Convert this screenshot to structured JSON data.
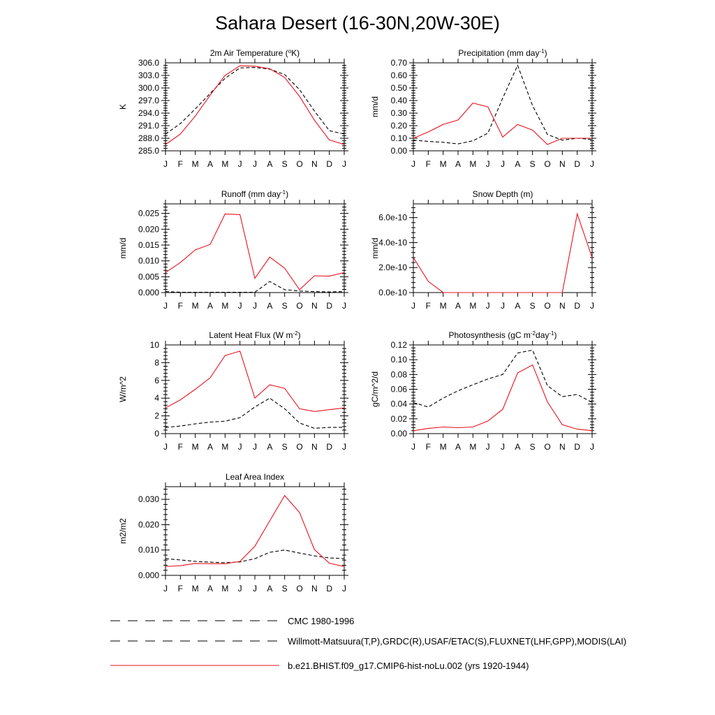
{
  "title": "Sahara Desert (16-30N,20W-30E)",
  "months": [
    "J",
    "F",
    "M",
    "A",
    "M",
    "J",
    "J",
    "A",
    "S",
    "O",
    "N",
    "D",
    "J"
  ],
  "legend": [
    {
      "label": "CMC 1980-1996",
      "color": "#000000",
      "style": "dashed"
    },
    {
      "label": "Willmott-Matsuura(T,P),GRDC(R),USAF/ETAC(S),FLUXNET(LHF,GPP),MODIS(LAI)",
      "color": "#000000",
      "style": "dashed"
    },
    {
      "label": "b.e21.BHIST.f09_g17.CMIP6-hist-noLu.002 (yrs 1920-1944)",
      "color": "#e8131e",
      "style": "solid"
    }
  ],
  "chart_data": [
    {
      "type": "line",
      "title": "2m Air Temperature (",
      "title_sup": "o",
      "title_tail": "K)",
      "ylabel": "K",
      "ylim": [
        285.0,
        306.0
      ],
      "yticks": [
        "285.0",
        "288.0",
        "291.0",
        "294.0",
        "297.0",
        "300.0",
        "303.0",
        "306.0"
      ],
      "ytick_values": [
        285,
        288,
        291,
        294,
        297,
        300,
        303,
        306
      ],
      "series": [
        {
          "style": "dashed",
          "values": [
            289.0,
            291.5,
            295.0,
            298.7,
            302.3,
            304.8,
            304.9,
            304.5,
            303.2,
            299.6,
            294.5,
            289.8,
            289.0
          ]
        },
        {
          "style": "solid",
          "values": [
            286.5,
            289.0,
            293.3,
            298.3,
            303.0,
            305.3,
            305.2,
            304.6,
            302.5,
            298.0,
            292.3,
            287.6,
            286.5
          ]
        }
      ]
    },
    {
      "type": "line",
      "title": "Precipitation (mm day",
      "title_sup": "-1",
      "title_tail": ")",
      "ylabel": "mm/d",
      "ylim": [
        0.0,
        0.7
      ],
      "yticks": [
        "0.00",
        "0.10",
        "0.20",
        "0.30",
        "0.40",
        "0.50",
        "0.60",
        "0.70"
      ],
      "ytick_values": [
        0,
        0.1,
        0.2,
        0.3,
        0.4,
        0.5,
        0.6,
        0.7
      ],
      "series": [
        {
          "style": "dashed",
          "values": [
            0.085,
            0.075,
            0.068,
            0.055,
            0.08,
            0.14,
            0.42,
            0.68,
            0.36,
            0.13,
            0.085,
            0.1,
            0.09
          ]
        },
        {
          "style": "solid",
          "values": [
            0.1,
            0.15,
            0.21,
            0.245,
            0.38,
            0.35,
            0.11,
            0.21,
            0.165,
            0.05,
            0.1,
            0.1,
            0.1
          ]
        }
      ]
    },
    {
      "type": "line",
      "title": "Runoff (mm day",
      "title_sup": "-1",
      "title_tail": ")",
      "ylabel": "mm/d",
      "ylim": [
        0.0,
        0.028
      ],
      "yticks": [
        "0.000",
        "0.005",
        "0.010",
        "0.015",
        "0.020",
        "0.025"
      ],
      "ytick_values": [
        0,
        0.005,
        0.01,
        0.015,
        0.02,
        0.025
      ],
      "series": [
        {
          "style": "dashed",
          "values": [
            0.0003,
            0.0001,
            0.0001,
            0.0001,
            0.0001,
            0.0001,
            0.0001,
            0.0035,
            0.0009,
            0.0005,
            0.0003,
            0.0002,
            0.0003
          ]
        },
        {
          "style": "solid",
          "values": [
            0.0063,
            0.0095,
            0.0135,
            0.0152,
            0.0248,
            0.0246,
            0.0045,
            0.0112,
            0.0077,
            0.0009,
            0.0053,
            0.0052,
            0.0063
          ]
        }
      ]
    },
    {
      "type": "line",
      "title": "Snow Depth (m)",
      "title_sup": "",
      "title_tail": "",
      "ylabel": "mm/d",
      "ylim": [
        0.0,
        7.1e-10
      ],
      "yticks": [
        "0.0e-10",
        "2.0e-10",
        "4.0e-10",
        "6.0e-10"
      ],
      "ytick_values": [
        0,
        2e-10,
        4e-10,
        6e-10
      ],
      "series": [
        {
          "style": "dashed",
          "values": [
            0,
            0,
            0,
            0,
            0,
            0,
            0,
            0,
            0,
            0,
            0,
            0,
            0
          ]
        },
        {
          "style": "solid",
          "values": [
            2.8e-10,
            9e-11,
            0,
            0,
            0,
            0,
            0,
            0,
            0,
            0,
            0,
            6.3e-10,
            2.8e-10
          ]
        }
      ]
    },
    {
      "type": "line",
      "title": "Latent Heat Flux (W m",
      "title_sup": "-2",
      "title_tail": ")",
      "ylabel": "W/m^2",
      "ylim": [
        0,
        10
      ],
      "yticks": [
        "0",
        "2",
        "4",
        "6",
        "8",
        "10"
      ],
      "ytick_values": [
        0,
        2,
        4,
        6,
        8,
        10
      ],
      "series": [
        {
          "style": "dashed",
          "values": [
            0.7,
            0.85,
            1.1,
            1.3,
            1.4,
            1.8,
            3.0,
            4.0,
            2.8,
            1.2,
            0.6,
            0.7,
            0.7
          ]
        },
        {
          "style": "solid",
          "values": [
            2.9,
            3.8,
            5.0,
            6.3,
            8.8,
            9.3,
            4.0,
            5.5,
            5.1,
            2.8,
            2.5,
            2.7,
            2.9
          ]
        }
      ]
    },
    {
      "type": "line",
      "title": "Photosynthesis (gC m",
      "title_sup": "-2",
      "title_tail": "day",
      "title_sup2": "-1",
      "title_tail2": ")",
      "ylabel": "gC/m^2/d",
      "ylim": [
        0.0,
        0.12
      ],
      "yticks": [
        "0.00",
        "0.02",
        "0.04",
        "0.06",
        "0.08",
        "0.10",
        "0.12"
      ],
      "ytick_values": [
        0,
        0.02,
        0.04,
        0.06,
        0.08,
        0.1,
        0.12
      ],
      "series": [
        {
          "style": "dashed",
          "values": [
            0.042,
            0.036,
            0.048,
            0.058,
            0.066,
            0.074,
            0.08,
            0.109,
            0.113,
            0.065,
            0.05,
            0.053,
            0.042
          ]
        },
        {
          "style": "solid",
          "values": [
            0.004,
            0.007,
            0.009,
            0.008,
            0.009,
            0.017,
            0.033,
            0.082,
            0.093,
            0.043,
            0.012,
            0.006,
            0.004
          ]
        }
      ]
    },
    {
      "type": "line",
      "title": "Leaf Area Index",
      "title_sup": "",
      "title_tail": "",
      "ylabel": "m2/m2",
      "ylim": [
        0.0,
        0.035
      ],
      "yticks": [
        "0.000",
        "0.010",
        "0.020",
        "0.030"
      ],
      "ytick_values": [
        0,
        0.01,
        0.02,
        0.03
      ],
      "series": [
        {
          "style": "dashed",
          "values": [
            0.0066,
            0.0061,
            0.0055,
            0.0052,
            0.005,
            0.0053,
            0.0066,
            0.0091,
            0.01,
            0.0088,
            0.0077,
            0.0069,
            0.0066
          ]
        },
        {
          "style": "solid",
          "values": [
            0.0035,
            0.0038,
            0.0047,
            0.0046,
            0.0046,
            0.0055,
            0.0115,
            0.0215,
            0.0315,
            0.0248,
            0.0102,
            0.0048,
            0.0035
          ]
        }
      ]
    }
  ]
}
